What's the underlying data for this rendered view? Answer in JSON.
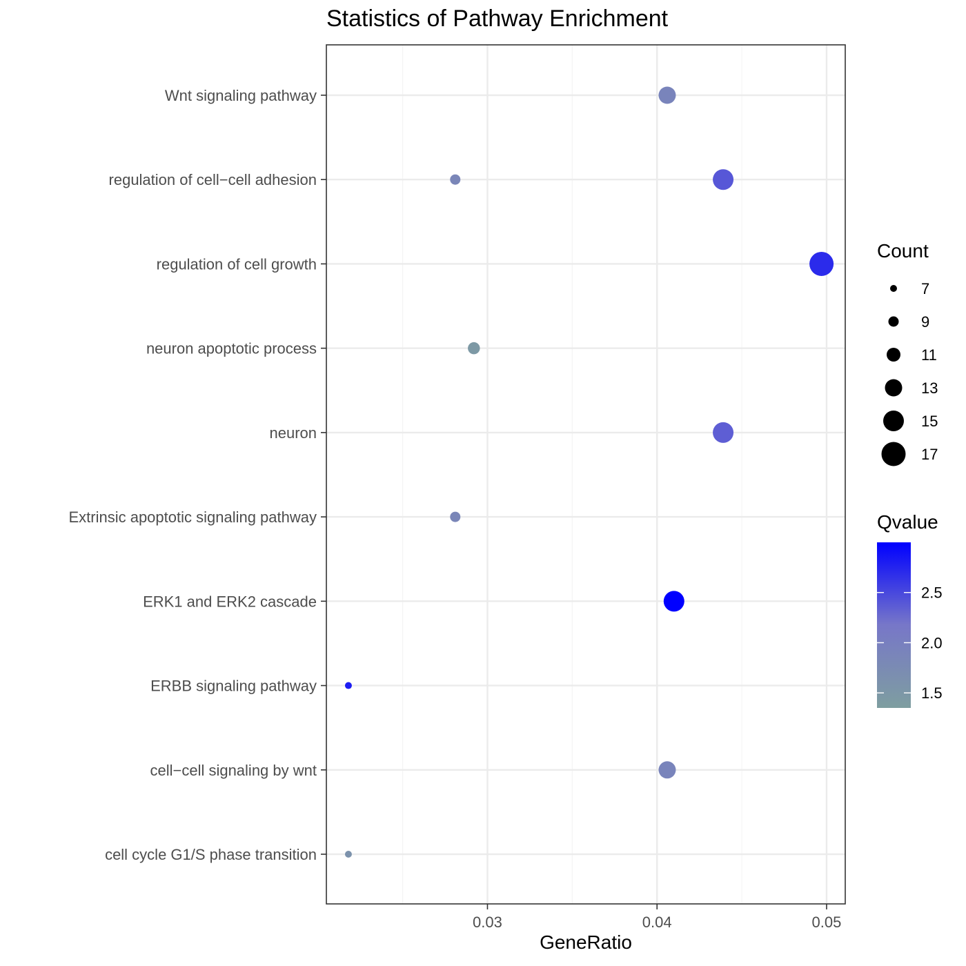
{
  "chart_data": {
    "type": "scatter",
    "title": "Statistics of Pathway Enrichment",
    "xlabel": "GeneRatio",
    "ylabel": "",
    "xlim": [
      0.0205,
      0.0511
    ],
    "x_ticks": [
      {
        "value": 0.03,
        "label": "0.03"
      },
      {
        "value": 0.04,
        "label": "0.04"
      },
      {
        "value": 0.05,
        "label": "0.05"
      }
    ],
    "categories": [
      "Wnt signaling pathway",
      "regulation of cell−cell adhesion",
      "regulation of cell growth",
      "neuron apoptotic process",
      "neuron",
      "Extrinsic apoptotic signaling pathway",
      "ERK1 and ERK2 cascade",
      "ERBB signaling pathway",
      "cell−cell signaling by wnt",
      "cell cycle G1/S phase transition"
    ],
    "points": [
      {
        "category": "Wnt signaling pathway",
        "x": 0.0406,
        "count": 13,
        "qvalue": 1.9
      },
      {
        "category": "regulation of cell−cell adhesion",
        "x": 0.0281,
        "count": 9,
        "qvalue": 1.85
      },
      {
        "category": "regulation of cell−cell adhesion",
        "x": 0.0439,
        "count": 15,
        "qvalue": 2.4
      },
      {
        "category": "regulation of cell growth",
        "x": 0.0497,
        "count": 17,
        "qvalue": 2.7
      },
      {
        "category": "neuron apoptotic process",
        "x": 0.0292,
        "count": 10,
        "qvalue": 1.45
      },
      {
        "category": "neuron",
        "x": 0.0439,
        "count": 15,
        "qvalue": 2.35
      },
      {
        "category": "Extrinsic apoptotic signaling pathway",
        "x": 0.0281,
        "count": 9,
        "qvalue": 1.85
      },
      {
        "category": "ERK1 and ERK2 cascade",
        "x": 0.041,
        "count": 15,
        "qvalue": 3.0
      },
      {
        "category": "ERBB signaling pathway",
        "x": 0.0218,
        "count": 7,
        "qvalue": 2.8
      },
      {
        "category": "cell−cell signaling by wnt",
        "x": 0.0406,
        "count": 13,
        "qvalue": 1.9
      },
      {
        "category": "cell cycle G1/S phase transition",
        "x": 0.0218,
        "count": 7,
        "qvalue": 1.6
      }
    ],
    "size_legend": {
      "title": "Count",
      "values": [
        7,
        9,
        11,
        13,
        15,
        17
      ]
    },
    "color_legend": {
      "title": "Qvalue",
      "range": [
        1.35,
        3.0
      ],
      "ticks": [
        {
          "value": 2.5,
          "label": "2.5"
        },
        {
          "value": 2.0,
          "label": "2.0"
        },
        {
          "value": 1.5,
          "label": "1.5"
        }
      ],
      "low_color": "#7e9ea0",
      "mid_color": "#7777c8",
      "high_color": "#0000ff"
    },
    "grid": true,
    "legend_position": "right",
    "colors": {
      "axis_text": "#4d4d4d",
      "grid_major": "#ebebeb",
      "grid_minor": "#f4f4f4",
      "panel_border": "#333333"
    }
  }
}
